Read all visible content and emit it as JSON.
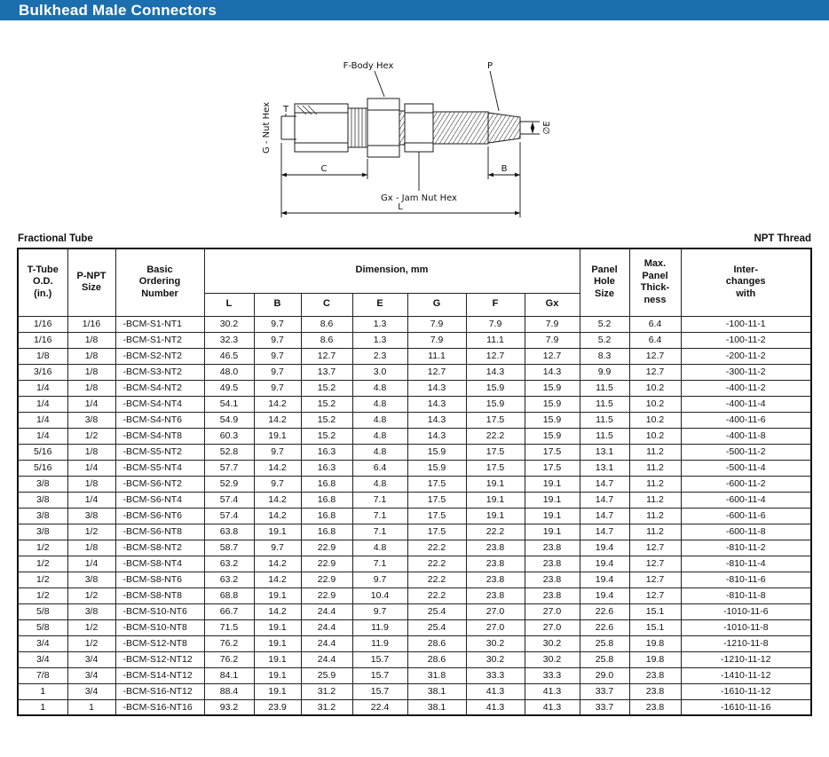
{
  "page": {
    "title": "Bulkhead Male Connectors"
  },
  "colors": {
    "header_bar_blue": "#1b6fae",
    "text": "#111111",
    "table_border": "#222222"
  },
  "diagram": {
    "labels": {
      "f_body_hex": "F-Body Hex",
      "p": "P",
      "g_nut_hex": "G - Nut Hex",
      "t": "T",
      "e_dia": "∅E",
      "c": "C",
      "b": "B",
      "gx_jam_nut_hex": "Gx - Jam Nut Hex",
      "l": "L"
    }
  },
  "table": {
    "section_left": "Fractional Tube",
    "section_right": "NPT Thread",
    "headers": {
      "tube_od": "T-Tube\nO.D.\n(in.)",
      "npt_size": "P-NPT\nSize",
      "ordering_number": "Basic\nOrdering\nNumber",
      "dimension": "Dimension, mm",
      "panel_hole": "Panel\nHole\nSize",
      "panel_thickness": "Max.\nPanel\nThick-\nness",
      "interchanges": "Inter-\nchanges\nwith"
    },
    "dim_headers": [
      "L",
      "B",
      "C",
      "E",
      "G",
      "F",
      "Gx"
    ],
    "rows": [
      [
        "1/16",
        "1/16",
        "-BCM-S1-NT1",
        "30.2",
        "9.7",
        "8.6",
        "1.3",
        "7.9",
        "7.9",
        "7.9",
        "5.2",
        "6.4",
        "-100-11-1"
      ],
      [
        "1/16",
        "1/8",
        "-BCM-S1-NT2",
        "32.3",
        "9.7",
        "8.6",
        "1.3",
        "7.9",
        "11.1",
        "7.9",
        "5.2",
        "6.4",
        "-100-11-2"
      ],
      [
        "1/8",
        "1/8",
        "-BCM-S2-NT2",
        "46.5",
        "9.7",
        "12.7",
        "2.3",
        "11.1",
        "12.7",
        "12.7",
        "8.3",
        "12.7",
        "-200-11-2"
      ],
      [
        "3/16",
        "1/8",
        "-BCM-S3-NT2",
        "48.0",
        "9.7",
        "13.7",
        "3.0",
        "12.7",
        "14.3",
        "14.3",
        "9.9",
        "12.7",
        "-300-11-2"
      ],
      [
        "1/4",
        "1/8",
        "-BCM-S4-NT2",
        "49.5",
        "9.7",
        "15.2",
        "4.8",
        "14.3",
        "15.9",
        "15.9",
        "11.5",
        "10.2",
        "-400-11-2"
      ],
      [
        "1/4",
        "1/4",
        "-BCM-S4-NT4",
        "54.1",
        "14.2",
        "15.2",
        "4.8",
        "14.3",
        "15.9",
        "15.9",
        "11.5",
        "10.2",
        "-400-11-4"
      ],
      [
        "1/4",
        "3/8",
        "-BCM-S4-NT6",
        "54.9",
        "14.2",
        "15.2",
        "4.8",
        "14.3",
        "17.5",
        "15.9",
        "11.5",
        "10.2",
        "-400-11-6"
      ],
      [
        "1/4",
        "1/2",
        "-BCM-S4-NT8",
        "60.3",
        "19.1",
        "15.2",
        "4.8",
        "14.3",
        "22.2",
        "15.9",
        "11.5",
        "10.2",
        "-400-11-8"
      ],
      [
        "5/16",
        "1/8",
        "-BCM-S5-NT2",
        "52.8",
        "9.7",
        "16.3",
        "4.8",
        "15.9",
        "17.5",
        "17.5",
        "13.1",
        "11.2",
        "-500-11-2"
      ],
      [
        "5/16",
        "1/4",
        "-BCM-S5-NT4",
        "57.7",
        "14.2",
        "16.3",
        "6.4",
        "15.9",
        "17.5",
        "17.5",
        "13.1",
        "11.2",
        "-500-11-4"
      ],
      [
        "3/8",
        "1/8",
        "-BCM-S6-NT2",
        "52.9",
        "9.7",
        "16.8",
        "4.8",
        "17.5",
        "19.1",
        "19.1",
        "14.7",
        "11.2",
        "-600-11-2"
      ],
      [
        "3/8",
        "1/4",
        "-BCM-S6-NT4",
        "57.4",
        "14.2",
        "16.8",
        "7.1",
        "17.5",
        "19.1",
        "19.1",
        "14.7",
        "11.2",
        "-600-11-4"
      ],
      [
        "3/8",
        "3/8",
        "-BCM-S6-NT6",
        "57.4",
        "14.2",
        "16.8",
        "7.1",
        "17.5",
        "19.1",
        "19.1",
        "14.7",
        "11.2",
        "-600-11-6"
      ],
      [
        "3/8",
        "1/2",
        "-BCM-S6-NT8",
        "63.8",
        "19.1",
        "16.8",
        "7.1",
        "17.5",
        "22.2",
        "19.1",
        "14.7",
        "11.2",
        "-600-11-8"
      ],
      [
        "1/2",
        "1/8",
        "-BCM-S8-NT2",
        "58.7",
        "9.7",
        "22.9",
        "4.8",
        "22.2",
        "23.8",
        "23.8",
        "19.4",
        "12.7",
        "-810-11-2"
      ],
      [
        "1/2",
        "1/4",
        "-BCM-S8-NT4",
        "63.2",
        "14.2",
        "22.9",
        "7.1",
        "22.2",
        "23.8",
        "23.8",
        "19.4",
        "12.7",
        "-810-11-4"
      ],
      [
        "1/2",
        "3/8",
        "-BCM-S8-NT6",
        "63.2",
        "14.2",
        "22.9",
        "9.7",
        "22.2",
        "23.8",
        "23.8",
        "19.4",
        "12.7",
        "-810-11-6"
      ],
      [
        "1/2",
        "1/2",
        "-BCM-S8-NT8",
        "68.8",
        "19.1",
        "22.9",
        "10.4",
        "22.2",
        "23.8",
        "23.8",
        "19.4",
        "12.7",
        "-810-11-8"
      ],
      [
        "5/8",
        "3/8",
        "-BCM-S10-NT6",
        "66.7",
        "14.2",
        "24.4",
        "9.7",
        "25.4",
        "27.0",
        "27.0",
        "22.6",
        "15.1",
        "-1010-11-6"
      ],
      [
        "5/8",
        "1/2",
        "-BCM-S10-NT8",
        "71.5",
        "19.1",
        "24.4",
        "11.9",
        "25.4",
        "27.0",
        "27.0",
        "22.6",
        "15.1",
        "-1010-11-8"
      ],
      [
        "3/4",
        "1/2",
        "-BCM-S12-NT8",
        "76.2",
        "19.1",
        "24.4",
        "11.9",
        "28.6",
        "30.2",
        "30.2",
        "25.8",
        "19.8",
        "-1210-11-8"
      ],
      [
        "3/4",
        "3/4",
        "-BCM-S12-NT12",
        "76.2",
        "19.1",
        "24.4",
        "15.7",
        "28.6",
        "30.2",
        "30.2",
        "25.8",
        "19.8",
        "-1210-11-12"
      ],
      [
        "7/8",
        "3/4",
        "-BCM-S14-NT12",
        "84.1",
        "19.1",
        "25.9",
        "15.7",
        "31.8",
        "33.3",
        "33.3",
        "29.0",
        "23.8",
        "-1410-11-12"
      ],
      [
        "1",
        "3/4",
        "-BCM-S16-NT12",
        "88.4",
        "19.1",
        "31.2",
        "15.7",
        "38.1",
        "41.3",
        "41.3",
        "33.7",
        "23.8",
        "-1610-11-12"
      ],
      [
        "1",
        "1",
        "-BCM-S16-NT16",
        "93.2",
        "23.9",
        "31.2",
        "22.4",
        "38.1",
        "41.3",
        "41.3",
        "33.7",
        "23.8",
        "-1610-11-16"
      ]
    ]
  }
}
